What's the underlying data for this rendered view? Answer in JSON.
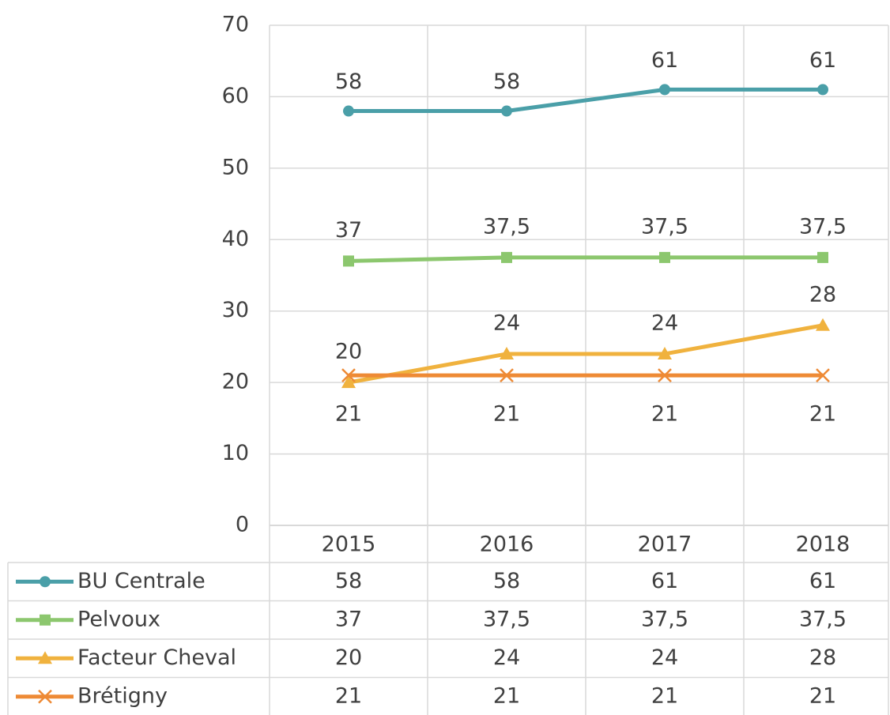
{
  "chart_data": {
    "type": "line",
    "categories": [
      "2015",
      "2016",
      "2017",
      "2018"
    ],
    "series": [
      {
        "name": "BU Centrale",
        "color": "#4a9fa8",
        "marker": "circle",
        "values": [
          58,
          58,
          61,
          61
        ]
      },
      {
        "name": "Pelvoux",
        "color": "#8cc76e",
        "marker": "square",
        "values": [
          37,
          37.5,
          37.5,
          37.5
        ],
        "value_labels": [
          "37",
          "37,5",
          "37,5",
          "37,5"
        ]
      },
      {
        "name": "Facteur Cheval",
        "color": "#f0b23e",
        "marker": "triangle",
        "values": [
          20,
          24,
          24,
          28
        ]
      },
      {
        "name": "Brétigny",
        "color": "#ee8a35",
        "marker": "x",
        "values": [
          21,
          21,
          21,
          21
        ]
      }
    ],
    "ylim": [
      0,
      70
    ],
    "yticks": [
      0,
      10,
      20,
      30,
      40,
      50,
      60,
      70
    ],
    "grid": true,
    "data_table": true
  }
}
